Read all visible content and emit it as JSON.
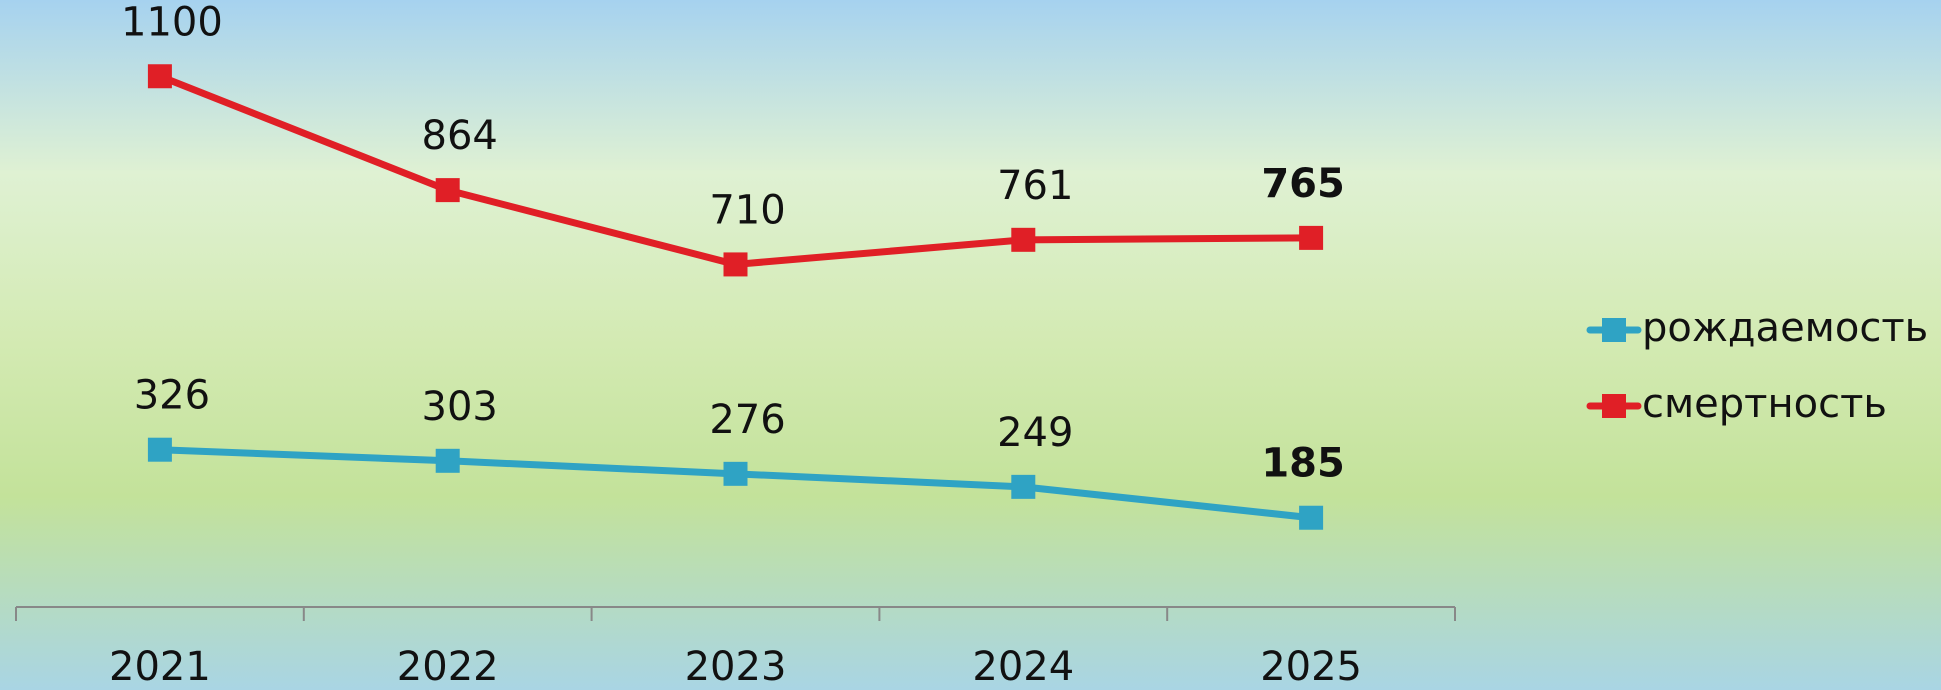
{
  "chart_data": {
    "type": "line",
    "categories": [
      "2021",
      "2022",
      "2023",
      "2024",
      "2025"
    ],
    "series": [
      {
        "name": "рождаемость",
        "color": "#2fa3c4",
        "values": [
          326,
          303,
          276,
          249,
          185
        ]
      },
      {
        "name": "смертность",
        "color": "#e01f26",
        "values": [
          1100,
          864,
          710,
          761,
          765
        ]
      }
    ],
    "ylim": [
      0,
      1200
    ],
    "legend": "right"
  }
}
